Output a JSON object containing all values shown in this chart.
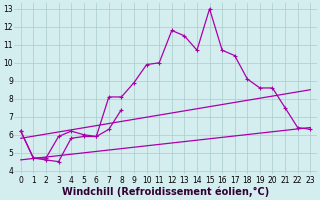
{
  "x": [
    0,
    1,
    2,
    3,
    4,
    5,
    6,
    7,
    8,
    9,
    10,
    11,
    12,
    13,
    14,
    15,
    16,
    17,
    18,
    19,
    20,
    21,
    22,
    23
  ],
  "line1": [
    6.2,
    4.7,
    4.6,
    4.5,
    5.8,
    5.9,
    5.9,
    8.1,
    8.1,
    8.9,
    9.9,
    10.0,
    11.8,
    11.5,
    10.7,
    13.0,
    10.7,
    10.4,
    9.1,
    8.6,
    8.6,
    7.5,
    6.4,
    6.3
  ],
  "line2": [
    6.2,
    4.7,
    4.7,
    5.9,
    6.2,
    6.0,
    5.9,
    6.3,
    7.4,
    null,
    null,
    null,
    null,
    null,
    null,
    null,
    null,
    null,
    null,
    null,
    null,
    null,
    null,
    null
  ],
  "line3_x": [
    0,
    23
  ],
  "line3_y": [
    5.8,
    8.5
  ],
  "line4_x": [
    0,
    23
  ],
  "line4_y": [
    4.6,
    6.4
  ],
  "ylim": [
    3.8,
    13.3
  ],
  "xlim": [
    -0.5,
    23.5
  ],
  "yticks": [
    4,
    5,
    6,
    7,
    8,
    9,
    10,
    11,
    12,
    13
  ],
  "xticks": [
    0,
    1,
    2,
    3,
    4,
    5,
    6,
    7,
    8,
    9,
    10,
    11,
    12,
    13,
    14,
    15,
    16,
    17,
    18,
    19,
    20,
    21,
    22,
    23
  ],
  "xlabel": "Windchill (Refroidissement éolien,°C)",
  "color": "#aa00aa",
  "bg_color": "#d4eef0",
  "grid_color": "#aacccc",
  "tick_fontsize": 5.5,
  "xlabel_fontsize": 7.0,
  "lw": 0.9,
  "markersize": 3.0
}
